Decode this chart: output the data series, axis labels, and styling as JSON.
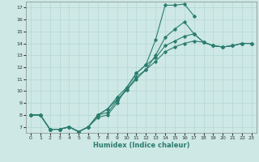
{
  "xlabel": "Humidex (Indice chaleur)",
  "background_color": "#cde8e5",
  "line_color": "#2a7d6e",
  "xlim": [
    -0.5,
    23.5
  ],
  "ylim": [
    6.5,
    17.5
  ],
  "xticks": [
    0,
    1,
    2,
    3,
    4,
    5,
    6,
    7,
    8,
    9,
    10,
    11,
    12,
    13,
    14,
    15,
    16,
    17,
    18,
    19,
    20,
    21,
    22,
    23
  ],
  "yticks": [
    7,
    8,
    9,
    10,
    11,
    12,
    13,
    14,
    15,
    16,
    17
  ],
  "lines": [
    {
      "x": [
        0,
        1,
        2,
        3,
        4,
        5,
        6,
        7,
        8,
        9,
        10,
        11,
        12,
        13,
        14,
        15,
        16,
        17,
        18,
        19,
        20,
        21,
        22,
        23
      ],
      "y": [
        8.0,
        8.0,
        6.8,
        6.8,
        7.0,
        6.6,
        7.0,
        7.8,
        8.0,
        9.0,
        10.3,
        11.5,
        12.2,
        14.3,
        17.2,
        17.2,
        17.3,
        16.3,
        null,
        null,
        null,
        null,
        null,
        null
      ]
    },
    {
      "x": [
        0,
        1,
        2,
        3,
        4,
        5,
        6,
        7,
        8,
        9,
        10,
        11,
        12,
        13,
        14,
        15,
        16,
        17,
        18,
        19,
        20,
        21,
        22,
        23
      ],
      "y": [
        8.0,
        8.0,
        6.8,
        6.8,
        7.0,
        6.6,
        7.0,
        8.0,
        8.2,
        9.2,
        10.1,
        11.2,
        11.8,
        13.0,
        14.5,
        15.2,
        15.8,
        14.8,
        14.1,
        13.8,
        13.7,
        13.8,
        14.0,
        14.0
      ]
    },
    {
      "x": [
        0,
        1,
        2,
        3,
        4,
        5,
        6,
        7,
        8,
        9,
        10,
        11,
        12,
        13,
        14,
        15,
        16,
        17,
        18,
        19,
        20,
        21,
        22,
        23
      ],
      "y": [
        8.0,
        8.0,
        6.8,
        6.8,
        7.0,
        6.6,
        7.0,
        8.0,
        8.5,
        9.5,
        10.3,
        11.5,
        12.2,
        12.8,
        13.8,
        14.2,
        14.6,
        14.8,
        14.1,
        13.8,
        13.7,
        13.8,
        14.0,
        14.0
      ]
    },
    {
      "x": [
        0,
        1,
        2,
        3,
        4,
        5,
        6,
        7,
        8,
        9,
        10,
        11,
        12,
        13,
        14,
        15,
        16,
        17,
        18,
        19,
        20,
        21,
        22,
        23
      ],
      "y": [
        8.0,
        8.0,
        6.8,
        6.8,
        7.0,
        6.6,
        7.0,
        8.0,
        8.5,
        9.3,
        10.1,
        11.0,
        11.8,
        12.5,
        13.3,
        13.7,
        14.0,
        14.2,
        14.1,
        13.8,
        13.7,
        13.8,
        14.0,
        14.0
      ]
    }
  ]
}
